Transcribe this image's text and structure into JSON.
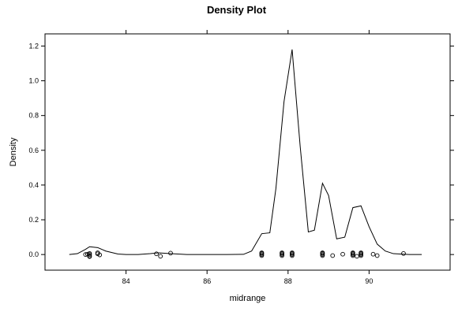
{
  "chart_data": {
    "type": "line",
    "title": "Density Plot",
    "xlabel": "midrange",
    "ylabel": "Density",
    "xlim": [
      82.0,
      92.0
    ],
    "ylim": [
      -0.09,
      1.27
    ],
    "x_ticks": [
      84,
      86,
      88,
      90
    ],
    "x_tick_labels": [
      "84",
      "86",
      "88",
      "90"
    ],
    "y_ticks": [
      0.0,
      0.2,
      0.4,
      0.6,
      0.8,
      1.0,
      1.2
    ],
    "y_tick_labels": [
      "0.0",
      "0.2",
      "0.4",
      "0.6",
      "0.8",
      "1.0",
      "1.2"
    ],
    "grid": false,
    "series": [
      {
        "values_x": [
          82.6,
          82.8,
          83.0,
          83.1,
          83.3,
          83.5,
          83.8,
          84.0,
          84.3,
          84.6,
          84.8,
          85.1,
          85.5,
          86.0,
          86.5,
          86.9,
          87.1,
          87.35,
          87.55,
          87.7,
          87.9,
          88.1,
          88.3,
          88.5,
          88.65,
          88.85,
          89.0,
          89.2,
          89.4,
          89.6,
          89.8,
          90.0,
          90.2,
          90.4,
          90.6,
          91.0,
          91.3
        ],
        "values_y": [
          0.0,
          0.005,
          0.03,
          0.045,
          0.04,
          0.02,
          0.003,
          0.0,
          0.0,
          0.005,
          0.01,
          0.005,
          0.0,
          0.0,
          0.0,
          0.001,
          0.02,
          0.12,
          0.125,
          0.38,
          0.88,
          1.18,
          0.62,
          0.13,
          0.14,
          0.41,
          0.34,
          0.09,
          0.1,
          0.27,
          0.28,
          0.16,
          0.06,
          0.02,
          0.005,
          0.0,
          0.0
        ]
      }
    ],
    "rug_points": [
      83.0,
      83.05,
      83.1,
      83.1,
      83.1,
      83.1,
      83.3,
      83.3,
      83.35,
      84.75,
      84.85,
      85.1,
      87.35,
      87.35,
      87.35,
      87.35,
      87.85,
      87.85,
      87.85,
      87.85,
      88.1,
      88.1,
      88.1,
      88.1,
      88.85,
      88.85,
      88.85,
      88.85,
      89.1,
      89.35,
      89.6,
      89.6,
      89.6,
      89.6,
      89.7,
      89.8,
      89.8,
      89.8,
      89.8,
      90.1,
      90.2,
      90.85
    ],
    "rug_jitter": [
      0.0,
      0.002,
      -0.008,
      0.0,
      0.006,
      -0.012,
      0.004,
      0.01,
      -0.002,
      0.004,
      -0.01,
      0.008,
      0.0,
      0.006,
      -0.006,
      0.01,
      0.0,
      0.006,
      -0.006,
      0.01,
      0.0,
      0.006,
      -0.006,
      0.01,
      0.0,
      0.006,
      -0.006,
      0.01,
      -0.006,
      0.002,
      0.0,
      0.006,
      -0.006,
      0.01,
      -0.01,
      0.0,
      0.006,
      -0.006,
      0.01,
      0.002,
      -0.006,
      0.006
    ]
  }
}
